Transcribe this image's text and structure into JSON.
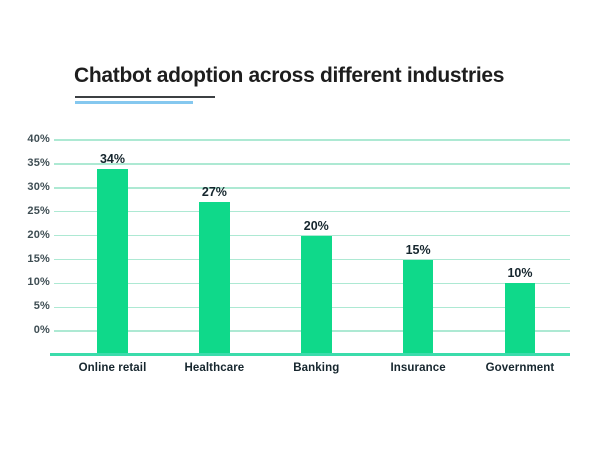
{
  "title": {
    "text": "Chatbot adoption across different industries"
  },
  "chart_data": {
    "type": "bar",
    "title": "Chatbot adoption across different industries",
    "categories": [
      "Online retail",
      "Healthcare",
      "Banking",
      "Insurance",
      "Government"
    ],
    "values": [
      34,
      27,
      20,
      15,
      10
    ],
    "value_labels": [
      "34%",
      "27%",
      "20%",
      "15%",
      "10%"
    ],
    "xlabel": "",
    "ylabel": "",
    "ylim": [
      0,
      40
    ],
    "yticks": [
      40,
      35,
      30,
      25,
      20,
      15,
      10,
      5,
      0
    ],
    "ytick_labels": [
      "40%",
      "35%",
      "30%",
      "25%",
      "20%",
      "15%",
      "10%",
      "5%",
      "0%"
    ],
    "grid": true,
    "legend": false,
    "colors": {
      "bar": "#0fd98a",
      "gridline": "#ade9d3",
      "axis_line": "#3bdcab",
      "ytick_label": "#3f4e54",
      "value_label": "#16262e",
      "category_label": "#16262e",
      "title": "#1e1e1e",
      "title_underline_dark": "#3c4043",
      "title_underline_blue": "#85c8ef",
      "background": "#ffffff"
    }
  }
}
